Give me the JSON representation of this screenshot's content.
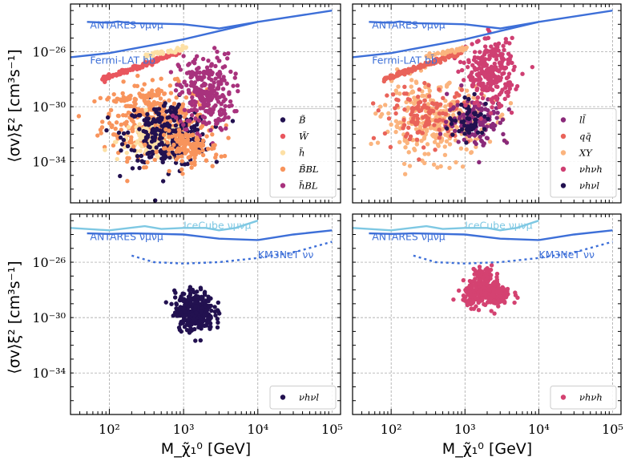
{
  "chart_data": {
    "type": "scatter",
    "x_scale": "log",
    "y_scale": "log",
    "xlim": [
      30,
      130000
    ],
    "ylim": [
      1e-37,
      3e-23
    ],
    "xlabel": "M_χ̃₁⁰ [GeV]",
    "ylabel": "⟨σv⟩ξ² [cm³s⁻¹]",
    "x_ticks": [
      {
        "value": 100,
        "label": "10²"
      },
      {
        "value": 1000,
        "label": "10³"
      },
      {
        "value": 10000,
        "label": "10⁴"
      },
      {
        "value": 100000,
        "label": "10⁵"
      }
    ],
    "y_ticks": [
      {
        "value": 1e-26,
        "label": "10⁻²⁶"
      },
      {
        "value": 1e-30,
        "label": "10⁻³⁰"
      },
      {
        "value": 1e-34,
        "label": "10⁻³⁴"
      }
    ],
    "panels": [
      {
        "id": "top-left",
        "legend": [
          {
            "label": "B̃",
            "color": "#221150"
          },
          {
            "label": "W̃",
            "color": "#e9565e"
          },
          {
            "label": "h̃",
            "color": "#fde0a5"
          },
          {
            "label": "B̃BL",
            "color": "#f8945c"
          },
          {
            "label": "h̃BL",
            "color": "#a8327d"
          }
        ],
        "clouds": [
          {
            "color": "#f8945c",
            "cx": 400,
            "cy": 1e-31,
            "sx": 0.35,
            "sy": 1.3,
            "n": 320
          },
          {
            "color": "#fde0a5",
            "cx": 400,
            "cy": 3e-33,
            "sx": 0.25,
            "sy": 0.7,
            "n": 120
          },
          {
            "color": "#221150",
            "cx": 600,
            "cy": 1e-32,
            "sx": 0.28,
            "sy": 1.2,
            "n": 260
          },
          {
            "color": "#a8327d",
            "cx": 2000,
            "cy": 1e-29,
            "sx": 0.18,
            "sy": 1.4,
            "n": 260
          },
          {
            "color": "#f8945c",
            "cx": 1200,
            "cy": 1e-33,
            "sx": 0.2,
            "sy": 0.6,
            "n": 120
          }
        ],
        "bands": [
          {
            "color": "#e9565e",
            "x0": 80,
            "x1": 900,
            "y0": 1e-28,
            "y1": 1e-26,
            "n": 150
          },
          {
            "color": "#fde0a5",
            "x0": 300,
            "x1": 1100,
            "y0": 5e-27,
            "y1": 2e-26,
            "n": 40
          },
          {
            "color": "#f8945c",
            "x0": 120,
            "x1": 600,
            "y0": 3e-30,
            "y1": 1e-29,
            "n": 40
          }
        ],
        "curves": [
          {
            "name": "ANTARES νμνμ",
            "color": "#3d6fd8",
            "dash": false,
            "x": [
              50,
              100,
              130,
              200,
              500,
              1000,
              3000,
              10000,
              100000
            ],
            "y": [
              1.5e-24,
              1.3e-24,
              1.6e-24,
              1.2e-24,
              1.1e-24,
              1e-24,
              5e-25,
              1.5e-24,
              1e-23
            ]
          },
          {
            "name": "Fermi-LAT bb̄",
            "color": "#3d6fd8",
            "dash": false,
            "x": [
              30,
              100,
              1000,
              10000
            ],
            "y": [
              4e-27,
              8e-27,
              8e-26,
              1.5e-24
            ]
          }
        ],
        "ref_labels": [
          {
            "text": "ANTARES νμνμ",
            "color": "#3d6fd8",
            "x": 55,
            "y": 5e-25
          },
          {
            "text": "Fermi-LAT bb̄",
            "color": "#3d6fd8",
            "x": 55,
            "y": 1.3e-27
          }
        ]
      },
      {
        "id": "top-right",
        "legend": [
          {
            "label": "ll̄",
            "color": "#8a2a7a"
          },
          {
            "label": "qq̄",
            "color": "#e9635a"
          },
          {
            "label": "XY",
            "color": "#fbb47e"
          },
          {
            "label": "νhνh",
            "color": "#cf3f72"
          },
          {
            "label": "νhνl",
            "color": "#221150"
          }
        ],
        "clouds": [
          {
            "color": "#fbb47e",
            "cx": 400,
            "cy": 1e-31,
            "sx": 0.35,
            "sy": 1.3,
            "n": 330
          },
          {
            "color": "#e9635a",
            "cx": 300,
            "cy": 3e-31,
            "sx": 0.3,
            "sy": 1.0,
            "n": 120
          },
          {
            "color": "#8a2a7a",
            "cx": 1500,
            "cy": 1e-31,
            "sx": 0.2,
            "sy": 0.9,
            "n": 120
          },
          {
            "color": "#221150",
            "cx": 1200,
            "cy": 1e-31,
            "sx": 0.15,
            "sy": 0.7,
            "n": 60
          },
          {
            "color": "#cf3f72",
            "cx": 2200,
            "cy": 3e-28,
            "sx": 0.16,
            "sy": 1.2,
            "n": 260
          }
        ],
        "bands": [
          {
            "color": "#e9635a",
            "x0": 80,
            "x1": 900,
            "y0": 1e-28,
            "y1": 1e-26,
            "n": 150
          },
          {
            "color": "#fbb47e",
            "x0": 300,
            "x1": 1100,
            "y0": 5e-27,
            "y1": 2e-26,
            "n": 40
          }
        ],
        "curves": [
          {
            "name": "ANTARES νμνμ",
            "color": "#3d6fd8",
            "dash": false,
            "x": [
              50,
              100,
              130,
              200,
              500,
              1000,
              3000,
              10000,
              100000
            ],
            "y": [
              1.5e-24,
              1.3e-24,
              1.6e-24,
              1.2e-24,
              1.1e-24,
              1e-24,
              5e-25,
              1.5e-24,
              1e-23
            ]
          },
          {
            "name": "Fermi-LAT bb̄",
            "color": "#3d6fd8",
            "dash": false,
            "x": [
              30,
              100,
              1000,
              10000
            ],
            "y": [
              4e-27,
              8e-27,
              8e-26,
              1.5e-24
            ]
          }
        ],
        "ref_labels": [
          {
            "text": "ANTARES νμνμ",
            "color": "#3d6fd8",
            "x": 55,
            "y": 5e-25
          },
          {
            "text": "Fermi-LAT bb̄",
            "color": "#3d6fd8",
            "x": 55,
            "y": 1.3e-27
          }
        ]
      },
      {
        "id": "bottom-left",
        "legend": [
          {
            "label": "νhνl",
            "color": "#221150"
          }
        ],
        "clouds": [
          {
            "color": "#221150",
            "cx": 1400,
            "cy": 3e-30,
            "sx": 0.13,
            "sy": 0.7,
            "n": 320
          }
        ],
        "bands": [],
        "curves": [
          {
            "name": "IceCube νμνμ",
            "color": "#7ec8e3",
            "dash": false,
            "x": [
              30,
              100,
              300,
              500,
              1000,
              2000,
              3000,
              5000,
              10000
            ],
            "y": [
              3e-24,
              2e-24,
              4e-24,
              2.5e-24,
              3e-24,
              3e-24,
              2e-24,
              3e-24,
              1e-23
            ]
          },
          {
            "name": "ANTARES νμνμ",
            "color": "#3d6fd8",
            "dash": false,
            "x": [
              50,
              100,
              200,
              500,
              1000,
              3000,
              10000,
              30000,
              100000
            ],
            "y": [
              1.2e-24,
              1.1e-24,
              1.2e-24,
              1.1e-24,
              1e-24,
              5e-25,
              4e-25,
              1e-24,
              2e-24
            ]
          },
          {
            "name": "KM3NeT νν",
            "color": "#3d6fd8",
            "dash": true,
            "x": [
              200,
              400,
              1000,
              3000,
              10000,
              30000,
              100000
            ],
            "y": [
              3e-26,
              1e-26,
              8e-27,
              1e-26,
              2e-26,
              5e-26,
              3e-25
            ]
          }
        ],
        "ref_labels": [
          {
            "text": "ANTARES νμνμ",
            "color": "#3d6fd8",
            "x": 55,
            "y": 4e-25
          },
          {
            "text": "IceCube νμνμ",
            "color": "#7ec8e3",
            "x": 1000,
            "y": 2.5e-24
          },
          {
            "text": "KM3NeT νν",
            "color": "#3d6fd8",
            "x": 10000,
            "y": 2e-26
          }
        ]
      },
      {
        "id": "bottom-right",
        "legend": [
          {
            "label": "νhνh",
            "color": "#d44271"
          }
        ],
        "clouds": [
          {
            "color": "#d44271",
            "cx": 2000,
            "cy": 5e-29,
            "sx": 0.16,
            "sy": 0.45,
            "n": 300
          },
          {
            "color": "#d44271",
            "cx": 1800,
            "cy": 1e-27,
            "sx": 0.08,
            "sy": 0.4,
            "n": 60
          }
        ],
        "bands": [],
        "curves": [
          {
            "name": "IceCube νμνμ",
            "color": "#7ec8e3",
            "dash": false,
            "x": [
              30,
              100,
              300,
              500,
              1000,
              2000,
              3000,
              5000,
              10000
            ],
            "y": [
              3e-24,
              2e-24,
              4e-24,
              2.5e-24,
              3e-24,
              3e-24,
              2e-24,
              3e-24,
              1e-23
            ]
          },
          {
            "name": "ANTARES νμνμ",
            "color": "#3d6fd8",
            "dash": false,
            "x": [
              50,
              100,
              200,
              500,
              1000,
              3000,
              10000,
              30000,
              100000
            ],
            "y": [
              1.2e-24,
              1.1e-24,
              1.2e-24,
              1.1e-24,
              1e-24,
              5e-25,
              4e-25,
              1e-24,
              2e-24
            ]
          },
          {
            "name": "KM3NeT νν",
            "color": "#3d6fd8",
            "dash": true,
            "x": [
              200,
              400,
              1000,
              3000,
              10000,
              30000,
              100000
            ],
            "y": [
              3e-26,
              1e-26,
              8e-27,
              1e-26,
              2e-26,
              5e-26,
              3e-25
            ]
          }
        ],
        "ref_labels": [
          {
            "text": "ANTARES νμνμ",
            "color": "#3d6fd8",
            "x": 55,
            "y": 4e-25
          },
          {
            "text": "IceCube νμνμ",
            "color": "#7ec8e3",
            "x": 1000,
            "y": 2.5e-24
          },
          {
            "text": "KM3NeT νν",
            "color": "#3d6fd8",
            "x": 10000,
            "y": 2e-26
          }
        ]
      }
    ]
  }
}
